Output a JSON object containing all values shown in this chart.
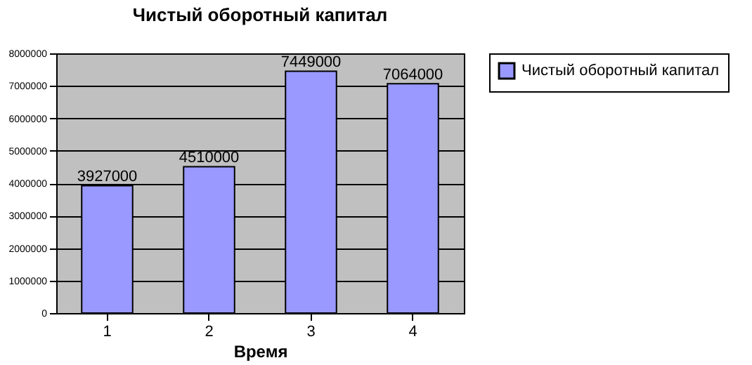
{
  "chart_data": {
    "type": "bar",
    "title": "Чистый оборотный капитал",
    "xlabel": "Время",
    "categories": [
      "1",
      "2",
      "3",
      "4"
    ],
    "series": [
      {
        "name": "Чистый оборотный капитал",
        "color": "#9999ff",
        "values": [
          3927000,
          4510000,
          7449000,
          7064000
        ]
      }
    ],
    "ylim": [
      0,
      8000000
    ],
    "yticks": [
      0,
      1000000,
      2000000,
      3000000,
      4000000,
      5000000,
      6000000,
      7000000,
      8000000
    ],
    "grid": "y",
    "legend": "right",
    "data_labels": true
  }
}
